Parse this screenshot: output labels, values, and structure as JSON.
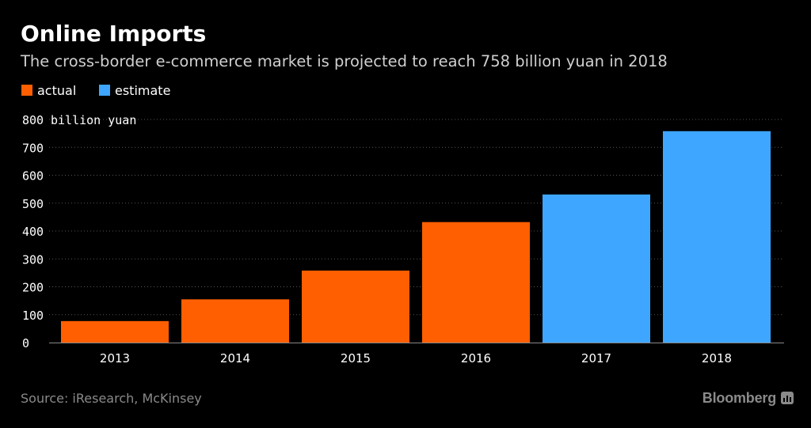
{
  "header": {
    "title": "Online Imports",
    "subtitle": "The cross-border e-commerce market is projected to reach 758 billion yuan in 2018"
  },
  "legend": [
    {
      "label": "actual",
      "color": "#ff5f00"
    },
    {
      "label": "estimate",
      "color": "#3ea6ff"
    }
  ],
  "chart_data": {
    "type": "bar",
    "title": "Online Imports",
    "subtitle": "The cross-border e-commerce market is projected to reach 758 billion yuan in 2018",
    "categories": [
      "2013",
      "2014",
      "2015",
      "2016",
      "2017",
      "2018"
    ],
    "series": [
      {
        "name": "actual",
        "color": "#ff5f00",
        "values": [
          77,
          155,
          258,
          432,
          null,
          null
        ]
      },
      {
        "name": "estimate",
        "color": "#3ea6ff",
        "values": [
          null,
          null,
          null,
          null,
          531,
          758
        ]
      }
    ],
    "ylabel": "billion yuan",
    "ylim": [
      0,
      800
    ],
    "yticks": [
      0,
      100,
      200,
      300,
      400,
      500,
      600,
      700,
      800
    ],
    "grid": true,
    "legend_position": "top-left"
  },
  "footer": {
    "source": "Source: iResearch, McKinsey",
    "brand": "Bloomberg",
    "brand_icon": "bloomberg-chart-icon"
  }
}
